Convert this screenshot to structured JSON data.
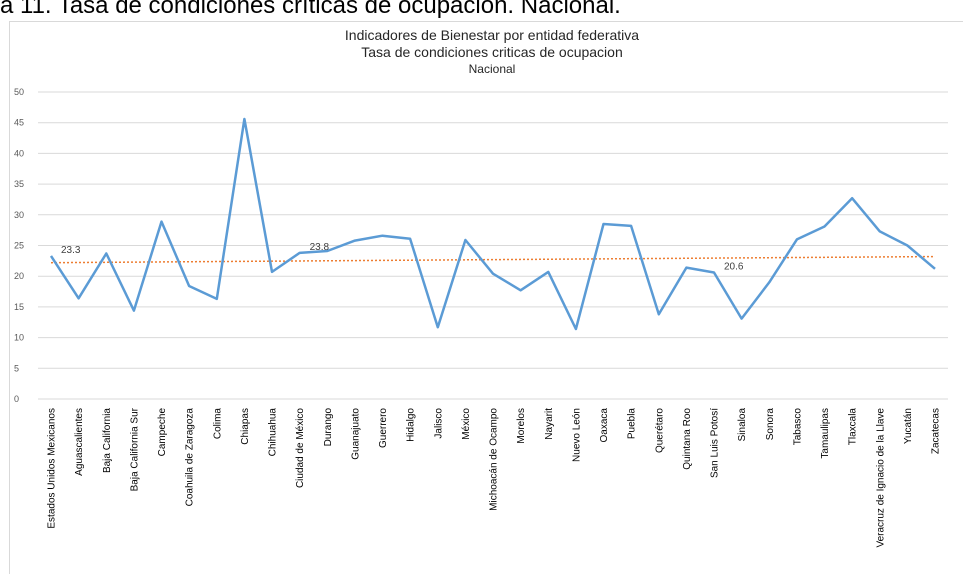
{
  "caption": "a 11. Tasa de condiciones críticas de ocupación. Nacional.",
  "chart_data": {
    "type": "line",
    "title": "Indicadores de Bienestar por entidad federativa",
    "subtitle": "Tasa de condiciones criticas de ocupacion",
    "subtitle2": "Nacional",
    "ylim": [
      0,
      50
    ],
    "yticks": [
      "0",
      "5",
      "10",
      "15",
      "20",
      "25",
      "30",
      "35",
      "40",
      "45",
      "50"
    ],
    "grid": true,
    "categories": [
      "Estados Unidos Mexicanos",
      "Aguascalientes",
      "Baja California",
      "Baja California Sur",
      "Campeche",
      "Coahuila de Zaragoza",
      "Colima",
      "Chiapas",
      "Chihuahua",
      "Ciudad de México",
      "Durango",
      "Guanajuato",
      "Guerrero",
      "Hidalgo",
      "Jalisco",
      "México",
      "Michoacán de Ocampo",
      "Morelos",
      "Nayarit",
      "Nuevo León",
      "Oaxaca",
      "Puebla",
      "Querétaro",
      "Quintana Roo",
      "San Luis Potosí",
      "Sinaloa",
      "Sonora",
      "Tabasco",
      "Tamaulipas",
      "Tlaxcala",
      "Veracruz de Ignacio de la Llave",
      "Yucatán",
      "Zacatecas"
    ],
    "series": [
      {
        "values": [
          23.3,
          16.4,
          23.7,
          14.4,
          28.9,
          18.4,
          16.3,
          45.6,
          20.7,
          23.8,
          24.1,
          25.8,
          26.6,
          26.1,
          11.7,
          25.9,
          20.4,
          17.7,
          20.7,
          11.4,
          28.5,
          28.2,
          13.8,
          21.4,
          20.6,
          13.1,
          19.0,
          26.0,
          28.1,
          32.7,
          27.3,
          25.0,
          21.2
        ],
        "color": "#5b9bd5"
      }
    ],
    "trendline": {
      "start": 22.2,
      "end": 23.2,
      "color": "#ed7d31"
    },
    "data_labels": [
      {
        "index": 0,
        "text": "23.3"
      },
      {
        "index": 9,
        "text": "23.8"
      },
      {
        "index": 24,
        "text": "20.6"
      }
    ]
  }
}
